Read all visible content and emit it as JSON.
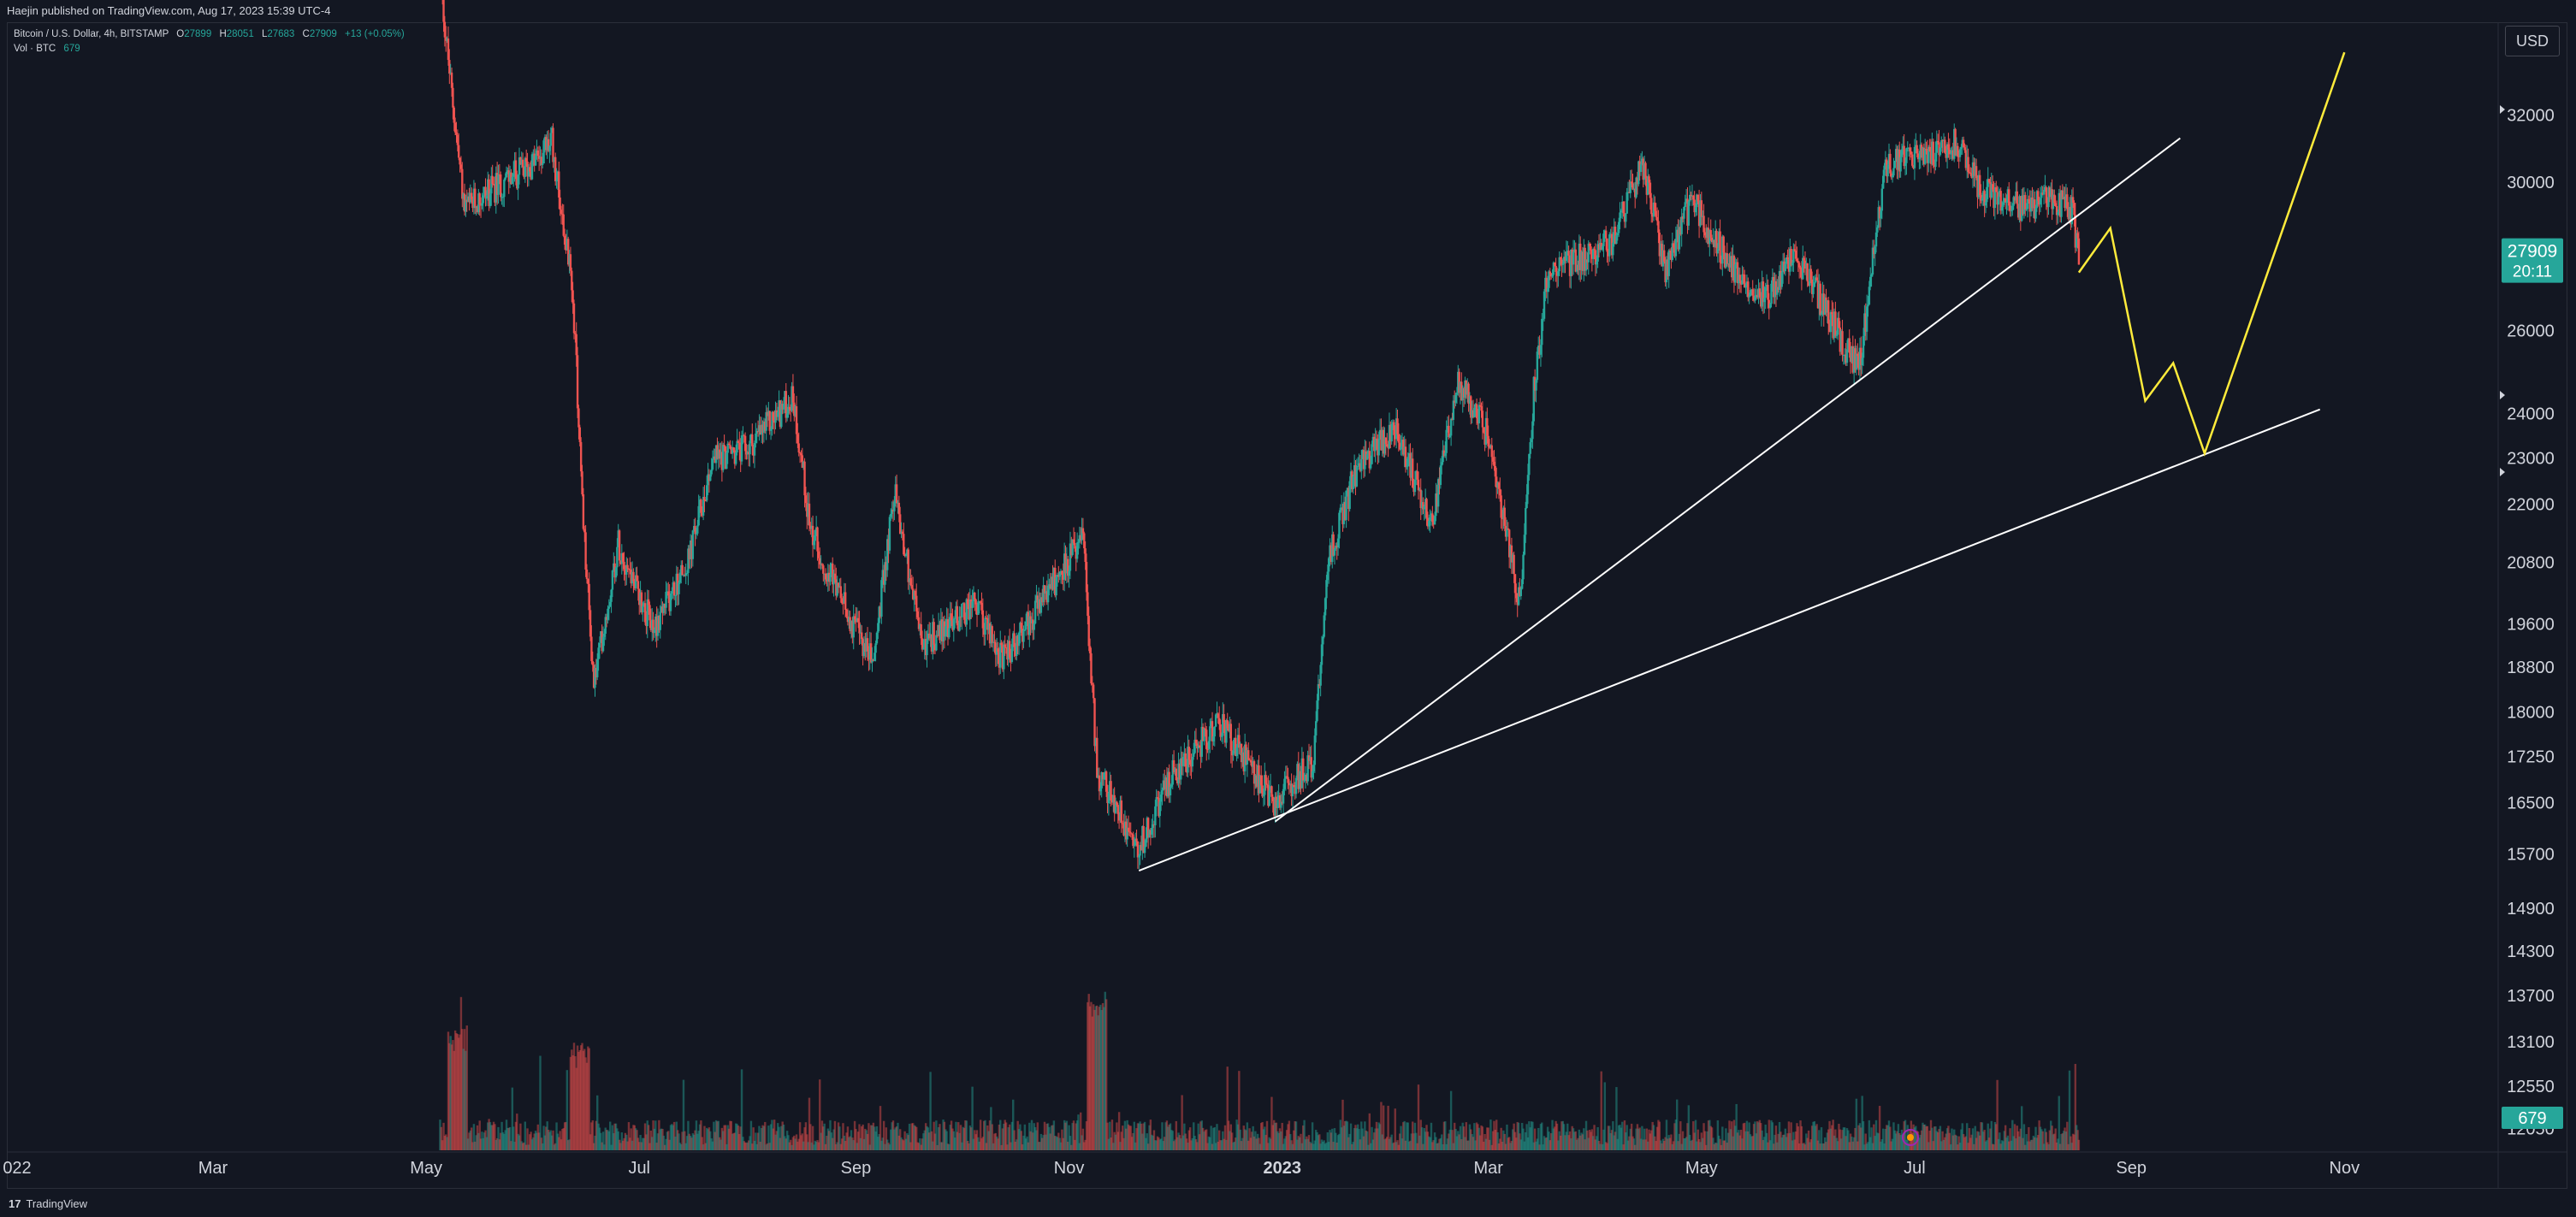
{
  "publish_note": "Haejin published on TradingView.com, Aug 17, 2023 15:39 UTC-4",
  "legend": {
    "symbol": "Bitcoin / U.S. Dollar, 4h, BITSTAMP",
    "o_label": "O",
    "o": "27899",
    "h_label": "H",
    "h": "28051",
    "l_label": "L",
    "l": "27683",
    "c_label": "C",
    "c": "27909",
    "change": "+13 (+0.05%)",
    "vol_label": "Vol · BTC",
    "vol": "679"
  },
  "currency": "USD",
  "footer": {
    "brand": "TradingView"
  },
  "colors": {
    "background": "#131722",
    "up": "#26a69a",
    "down": "#ef5350",
    "trendline": "#ffffff",
    "projection": "#ffeb3b",
    "grid": "#2a2e39"
  },
  "chart_data": {
    "type": "candlestick",
    "symbol": "BTCUSD",
    "exchange": "BITSTAMP",
    "interval": "4h",
    "y_scale": "log",
    "ylim": [
      11800,
      35000
    ],
    "xlim": [
      "2022-01-01",
      "2023-12-15"
    ],
    "x_ticks": [
      {
        "label": "022",
        "date": "2022-01-01"
      },
      {
        "label": "Mar",
        "date": "2022-03-01"
      },
      {
        "label": "May",
        "date": "2022-05-01"
      },
      {
        "label": "Jul",
        "date": "2022-07-01"
      },
      {
        "label": "Sep",
        "date": "2022-09-01"
      },
      {
        "label": "Nov",
        "date": "2022-11-01"
      },
      {
        "label": "2023",
        "date": "2023-01-01"
      },
      {
        "label": "Mar",
        "date": "2023-03-01"
      },
      {
        "label": "May",
        "date": "2023-05-01"
      },
      {
        "label": "Jul",
        "date": "2023-07-01"
      },
      {
        "label": "Sep",
        "date": "2023-09-01"
      },
      {
        "label": "Nov",
        "date": "2023-11-01"
      }
    ],
    "y_ticks": [
      32000,
      30000,
      26000,
      24000,
      23000,
      22000,
      20800,
      19600,
      18800,
      18000,
      17250,
      16500,
      15700,
      14900,
      14300,
      13700,
      13100,
      12550,
      12050
    ],
    "price_path": [
      {
        "date": "2022-05-05",
        "close": 36500
      },
      {
        "date": "2022-05-08",
        "close": 33000
      },
      {
        "date": "2022-05-12",
        "close": 29200
      },
      {
        "date": "2022-05-20",
        "close": 29800
      },
      {
        "date": "2022-05-31",
        "close": 30500
      },
      {
        "date": "2022-06-06",
        "close": 31200
      },
      {
        "date": "2022-06-12",
        "close": 27000
      },
      {
        "date": "2022-06-15",
        "close": 21500
      },
      {
        "date": "2022-06-18",
        "close": 18500
      },
      {
        "date": "2022-06-25",
        "close": 21200
      },
      {
        "date": "2022-07-05",
        "close": 19500
      },
      {
        "date": "2022-07-15",
        "close": 20800
      },
      {
        "date": "2022-07-22",
        "close": 23000
      },
      {
        "date": "2022-08-01",
        "close": 23200
      },
      {
        "date": "2022-08-14",
        "close": 24400
      },
      {
        "date": "2022-08-19",
        "close": 21500
      },
      {
        "date": "2022-08-28",
        "close": 20000
      },
      {
        "date": "2022-09-06",
        "close": 18900
      },
      {
        "date": "2022-09-12",
        "close": 22300
      },
      {
        "date": "2022-09-20",
        "close": 19200
      },
      {
        "date": "2022-10-05",
        "close": 20000
      },
      {
        "date": "2022-10-13",
        "close": 18900
      },
      {
        "date": "2022-10-25",
        "close": 20100
      },
      {
        "date": "2022-11-05",
        "close": 21300
      },
      {
        "date": "2022-11-09",
        "close": 17000
      },
      {
        "date": "2022-11-21",
        "close": 15800
      },
      {
        "date": "2022-12-01",
        "close": 17000
      },
      {
        "date": "2022-12-14",
        "close": 17800
      },
      {
        "date": "2022-12-30",
        "close": 16500
      },
      {
        "date": "2023-01-10",
        "close": 17200
      },
      {
        "date": "2023-01-14",
        "close": 20800
      },
      {
        "date": "2023-01-22",
        "close": 22700
      },
      {
        "date": "2023-02-02",
        "close": 23700
      },
      {
        "date": "2023-02-13",
        "close": 21600
      },
      {
        "date": "2023-02-20",
        "close": 24800
      },
      {
        "date": "2023-03-01",
        "close": 23500
      },
      {
        "date": "2023-03-10",
        "close": 20000
      },
      {
        "date": "2023-03-14",
        "close": 24500
      },
      {
        "date": "2023-03-18",
        "close": 27500
      },
      {
        "date": "2023-03-25",
        "close": 27800
      },
      {
        "date": "2023-04-05",
        "close": 28300
      },
      {
        "date": "2023-04-14",
        "close": 30500
      },
      {
        "date": "2023-04-21",
        "close": 27500
      },
      {
        "date": "2023-04-28",
        "close": 29500
      },
      {
        "date": "2023-05-10",
        "close": 27600
      },
      {
        "date": "2023-05-20",
        "close": 26800
      },
      {
        "date": "2023-05-28",
        "close": 28000
      },
      {
        "date": "2023-06-10",
        "close": 25800
      },
      {
        "date": "2023-06-15",
        "close": 25000
      },
      {
        "date": "2023-06-20",
        "close": 28500
      },
      {
        "date": "2023-06-23",
        "close": 30500
      },
      {
        "date": "2023-07-05",
        "close": 30800
      },
      {
        "date": "2023-07-13",
        "close": 31200
      },
      {
        "date": "2023-07-20",
        "close": 29800
      },
      {
        "date": "2023-08-01",
        "close": 29300
      },
      {
        "date": "2023-08-10",
        "close": 29500
      },
      {
        "date": "2023-08-15",
        "close": 29200
      },
      {
        "date": "2023-08-17",
        "close": 27909
      }
    ],
    "volume_last": 679,
    "last_price": 27909,
    "countdown": "20:11",
    "trendlines": [
      {
        "name": "upper-support",
        "from": {
          "date": "2022-12-30",
          "price": 16200
        },
        "to": {
          "date": "2023-09-15",
          "price": 31300
        }
      },
      {
        "name": "lower-support",
        "from": {
          "date": "2022-11-21",
          "price": 15450
        },
        "to": {
          "date": "2023-10-25",
          "price": 24100
        }
      }
    ],
    "projection": [
      {
        "date": "2023-08-17",
        "price": 27500
      },
      {
        "date": "2023-08-26",
        "price": 28700
      },
      {
        "date": "2023-09-05",
        "price": 24300
      },
      {
        "date": "2023-09-13",
        "price": 25200
      },
      {
        "date": "2023-09-22",
        "price": 23100
      },
      {
        "date": "2023-11-01",
        "price": 34000
      }
    ]
  }
}
